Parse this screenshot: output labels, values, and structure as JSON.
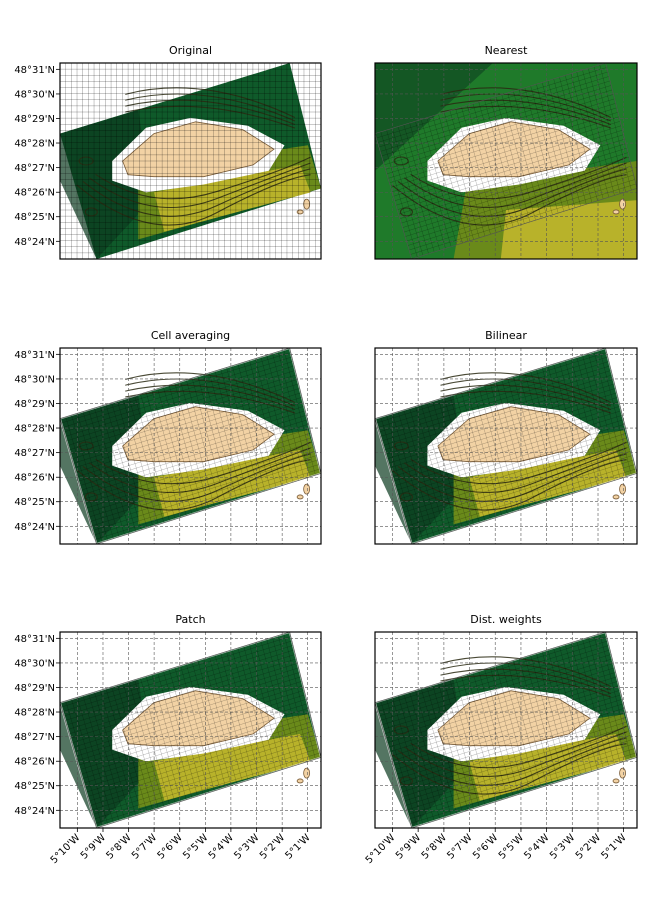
{
  "chart_data": {
    "type": "heatmap",
    "description_free": true,
    "panels": [
      {
        "id": "original",
        "title": "Original",
        "variant": "orig",
        "show_lat": true,
        "show_lon": false
      },
      {
        "id": "nearest",
        "title": "Nearest",
        "variant": "nearest",
        "show_lat": false,
        "show_lon": false
      },
      {
        "id": "cell_averaging",
        "title": "Cell averaging",
        "variant": "avg",
        "show_lat": true,
        "show_lon": false
      },
      {
        "id": "bilinear",
        "title": "Bilinear",
        "variant": "avg",
        "show_lat": false,
        "show_lon": false
      },
      {
        "id": "patch",
        "title": "Patch",
        "variant": "patch",
        "show_lat": true,
        "show_lon": true
      },
      {
        "id": "dist_weights",
        "title": "Dist. weights",
        "variant": "dist",
        "show_lat": false,
        "show_lon": true
      }
    ],
    "lat_ticks": [
      "48°31'N",
      "48°30'N",
      "48°29'N",
      "48°28'N",
      "48°27'N",
      "48°26'N",
      "48°25'N",
      "48°24'N"
    ],
    "lat_values": [
      48.5167,
      48.5,
      48.4833,
      48.4667,
      48.45,
      48.4333,
      48.4167,
      48.4
    ],
    "lon_ticks": [
      "5°10'W",
      "5°9'W",
      "5°8'W",
      "5°7'W",
      "5°6'W",
      "5°5'W",
      "5°4'W",
      "5°3'W",
      "5°2'W",
      "5°1'W"
    ],
    "lon_values": [
      -5.1667,
      -5.15,
      -5.1333,
      -5.1167,
      -5.1,
      -5.0833,
      -5.0667,
      -5.05,
      -5.0333,
      -5.0167
    ],
    "xlim": [
      -5.178,
      -5.008
    ],
    "ylim": [
      48.388,
      48.521
    ],
    "grid": true,
    "colors": {
      "deep": "#0b3a1f",
      "dark_green": "#0f5a2a",
      "mid_green": "#1f7a2a",
      "olive": "#6a8a1a",
      "yellow": "#b8b22a",
      "land": "#f2d2a4",
      "contour": "#2a2a12"
    }
  }
}
